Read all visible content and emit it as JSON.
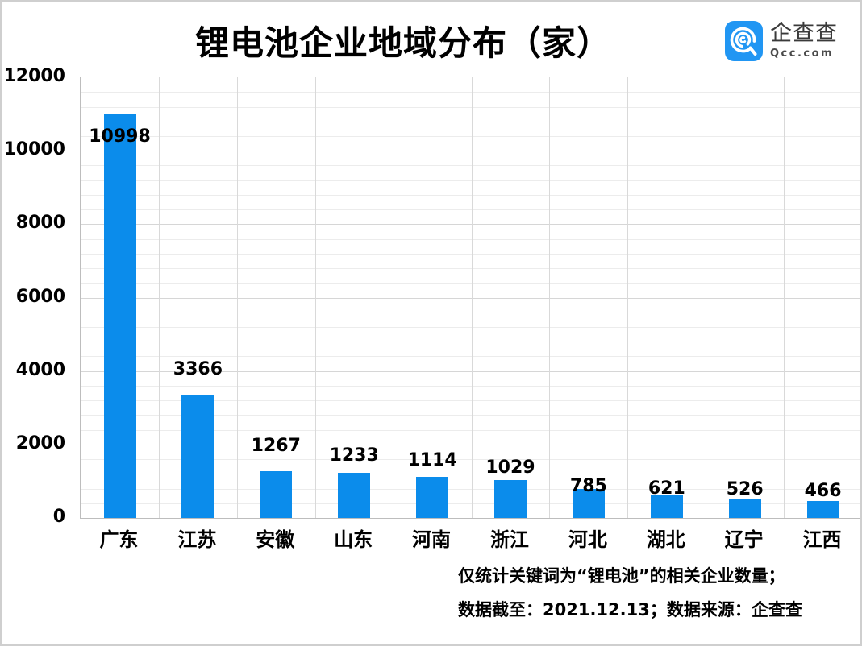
{
  "header": {
    "title": "锂电池企业地域分布（家）",
    "logo": {
      "brand_name": "企查查",
      "brand_domain": "Qcc.com",
      "icon_color": "#2196f3"
    }
  },
  "chart_data": {
    "type": "bar",
    "title": "锂电池企业地域分布（家）",
    "categories": [
      "广东",
      "江苏",
      "安徽",
      "山东",
      "河南",
      "浙江",
      "河北",
      "湖北",
      "辽宁",
      "江西"
    ],
    "values": [
      10998,
      3366,
      1267,
      1233,
      1114,
      1029,
      785,
      621,
      526,
      466
    ],
    "xlabel": "",
    "ylabel": "",
    "ylim": [
      0,
      12000
    ],
    "y_ticks": [
      12000,
      10000,
      8000,
      6000,
      4000,
      2000,
      0
    ],
    "minor_gridline_step": 400,
    "major_gridline_step": 2000,
    "grid": true,
    "legend": false,
    "value_labels_shown": true,
    "bar_color": "#0b8ceb"
  },
  "footnote": {
    "line1": "仅统计关键词为“锂电池”的相关企业数量；",
    "line2": "数据截至：2021.12.13；数据来源：企查查"
  }
}
